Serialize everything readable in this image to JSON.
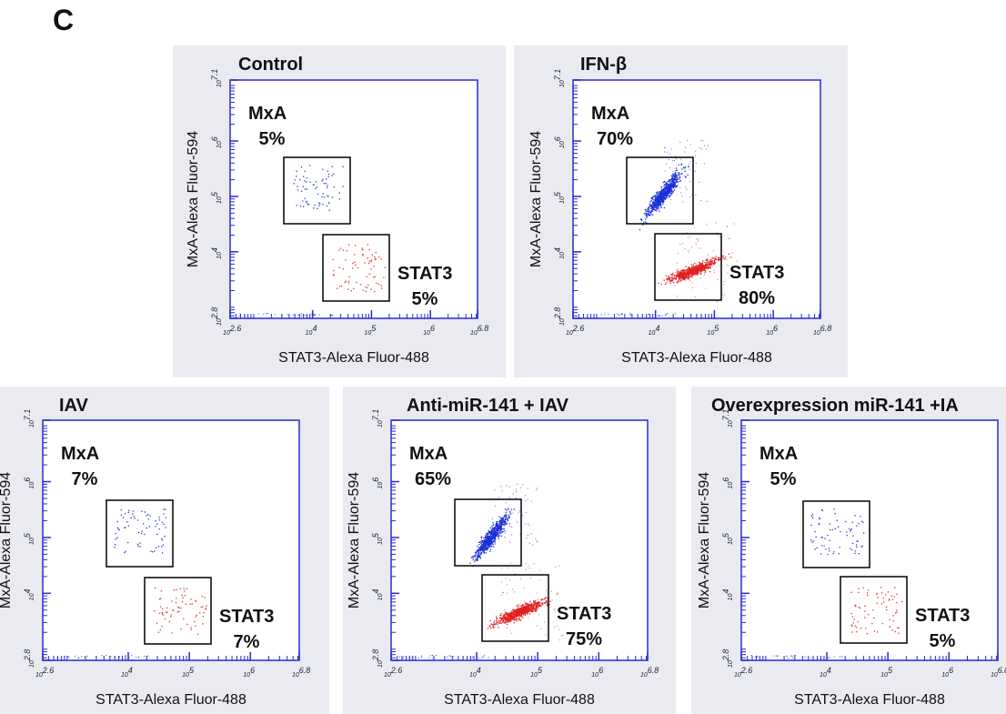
{
  "figure_label": "C",
  "x_axis_label": "STAT3-Alexa Fluor-488",
  "y_axis_label": "MxA-Alexa Fluor-594",
  "tick_base": "10",
  "xlim": [
    2.6,
    6.8
  ],
  "xticks": [
    2.6,
    4,
    5,
    6,
    6.8
  ],
  "ylim": [
    2.8,
    7.1
  ],
  "yticks": [
    2.8,
    4,
    5,
    6,
    7.1
  ],
  "panels": [
    {
      "title": "Control",
      "mxa_label": "MxA",
      "mxa_percent": "5%",
      "stat3_label": "STAT3",
      "stat3_percent": "5%"
    },
    {
      "title": "IFN-β",
      "mxa_label": "MxA",
      "mxa_percent": "70%",
      "stat3_label": "STAT3",
      "stat3_percent": "80%"
    },
    {
      "title": "IAV",
      "mxa_label": "MxA",
      "mxa_percent": "7%",
      "stat3_label": "STAT3",
      "stat3_percent": "7%"
    },
    {
      "title": "Anti-miR-141 + IAV",
      "mxa_label": "MxA",
      "mxa_percent": "65%",
      "stat3_label": "STAT3",
      "stat3_percent": "75%"
    },
    {
      "title": "Overexpression miR-141 +IA",
      "mxa_label": "MxA",
      "mxa_percent": "5%",
      "stat3_label": "STAT3",
      "stat3_percent": "5%"
    }
  ]
}
